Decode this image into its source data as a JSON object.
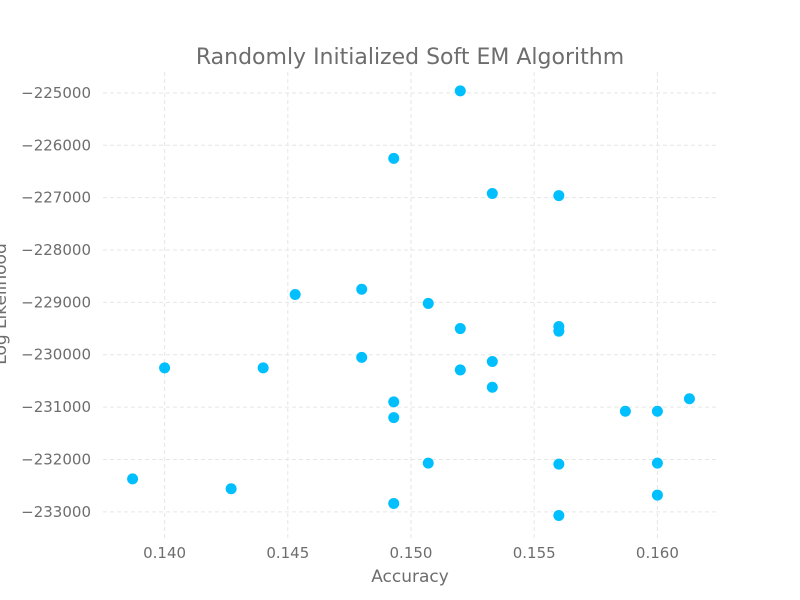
{
  "chart_data": {
    "type": "scatter",
    "title": "Randomly Initialized Soft EM Algorithm",
    "xlabel": "Accuracy",
    "ylabel": "Log Likelihood",
    "xlim": [
      0.1375,
      0.1625
    ],
    "ylim": [
      -233500,
      -224600
    ],
    "x_ticks": [
      {
        "value": 0.14,
        "label": "0.140"
      },
      {
        "value": 0.145,
        "label": "0.145"
      },
      {
        "value": 0.15,
        "label": "0.150"
      },
      {
        "value": 0.155,
        "label": "0.155"
      },
      {
        "value": 0.16,
        "label": "0.160"
      }
    ],
    "y_ticks": [
      {
        "value": -225000,
        "label": "−225000"
      },
      {
        "value": -226000,
        "label": "−226000"
      },
      {
        "value": -227000,
        "label": "−227000"
      },
      {
        "value": -228000,
        "label": "−228000"
      },
      {
        "value": -229000,
        "label": "−229000"
      },
      {
        "value": -230000,
        "label": "−230000"
      },
      {
        "value": -231000,
        "label": "−231000"
      },
      {
        "value": -232000,
        "label": "−232000"
      },
      {
        "value": -233000,
        "label": "−233000"
      }
    ],
    "grid": true,
    "series": [
      {
        "color": "#00bfff",
        "points": [
          {
            "x": 0.1387,
            "y": -232370
          },
          {
            "x": 0.14,
            "y": -230250
          },
          {
            "x": 0.1427,
            "y": -232560
          },
          {
            "x": 0.144,
            "y": -230250
          },
          {
            "x": 0.1453,
            "y": -228850
          },
          {
            "x": 0.148,
            "y": -228750
          },
          {
            "x": 0.148,
            "y": -230050
          },
          {
            "x": 0.1493,
            "y": -226250
          },
          {
            "x": 0.1493,
            "y": -230900
          },
          {
            "x": 0.1493,
            "y": -231200
          },
          {
            "x": 0.1493,
            "y": -232840
          },
          {
            "x": 0.1507,
            "y": -229020
          },
          {
            "x": 0.1507,
            "y": -232070
          },
          {
            "x": 0.152,
            "y": -224960
          },
          {
            "x": 0.152,
            "y": -229500
          },
          {
            "x": 0.152,
            "y": -230290
          },
          {
            "x": 0.1533,
            "y": -226920
          },
          {
            "x": 0.1533,
            "y": -230130
          },
          {
            "x": 0.1533,
            "y": -230620
          },
          {
            "x": 0.156,
            "y": -226960
          },
          {
            "x": 0.156,
            "y": -229460
          },
          {
            "x": 0.156,
            "y": -229550
          },
          {
            "x": 0.156,
            "y": -232090
          },
          {
            "x": 0.156,
            "y": -233070
          },
          {
            "x": 0.1587,
            "y": -231080
          },
          {
            "x": 0.16,
            "y": -231080
          },
          {
            "x": 0.16,
            "y": -232070
          },
          {
            "x": 0.16,
            "y": -232680
          },
          {
            "x": 0.1613,
            "y": -230840
          }
        ]
      }
    ]
  }
}
